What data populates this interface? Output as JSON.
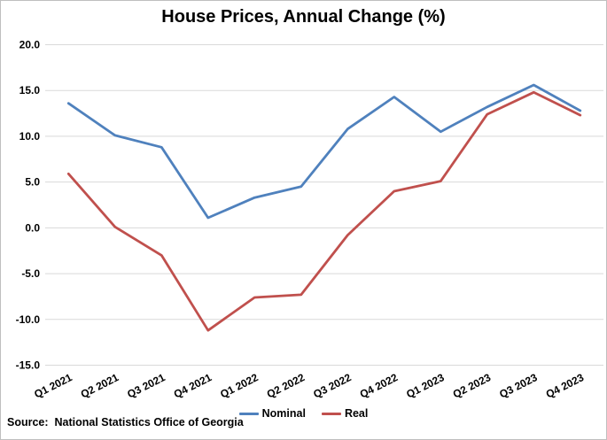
{
  "title": "House Prices, Annual Change (%)",
  "source_note": "Source:  National Statistics Office of Georgia",
  "colors": {
    "nominal_line": "#4F81BD",
    "real_line": "#C0504D",
    "gridline": "#D9D9D9",
    "text": "#000000",
    "border": "#BFBFBF",
    "background": "#FFFFFF"
  },
  "chart_data": {
    "type": "line",
    "title": "House Prices, Annual Change (%)",
    "categories": [
      "Q1 2021",
      "Q2 2021",
      "Q3 2021",
      "Q4 2021",
      "Q1 2022",
      "Q2 2022",
      "Q3 2022",
      "Q4 2022",
      "Q1 2023",
      "Q2 2023",
      "Q3 2023",
      "Q4 2023"
    ],
    "series": [
      {
        "name": "Nominal",
        "color": "#4F81BD",
        "values": [
          13.6,
          10.1,
          8.8,
          1.1,
          3.3,
          4.5,
          10.8,
          14.3,
          10.5,
          13.2,
          15.6,
          12.8
        ]
      },
      {
        "name": "Real",
        "color": "#C0504D",
        "values": [
          5.9,
          0.1,
          -3.0,
          -11.2,
          -7.6,
          -7.3,
          -0.8,
          4.0,
          5.1,
          12.4,
          14.8,
          12.3
        ]
      }
    ],
    "xlabel": "",
    "ylabel": "",
    "ylim": [
      -15,
      20
    ],
    "ytick_step": 5,
    "ytick_labels": [
      "20.0",
      "15.0",
      "10.0",
      "5.0",
      "0.0",
      "-5.0",
      "-10.0",
      "-15.0"
    ],
    "grid": true,
    "legend_position": "bottom-center",
    "x_label_rotation_deg": -27
  }
}
